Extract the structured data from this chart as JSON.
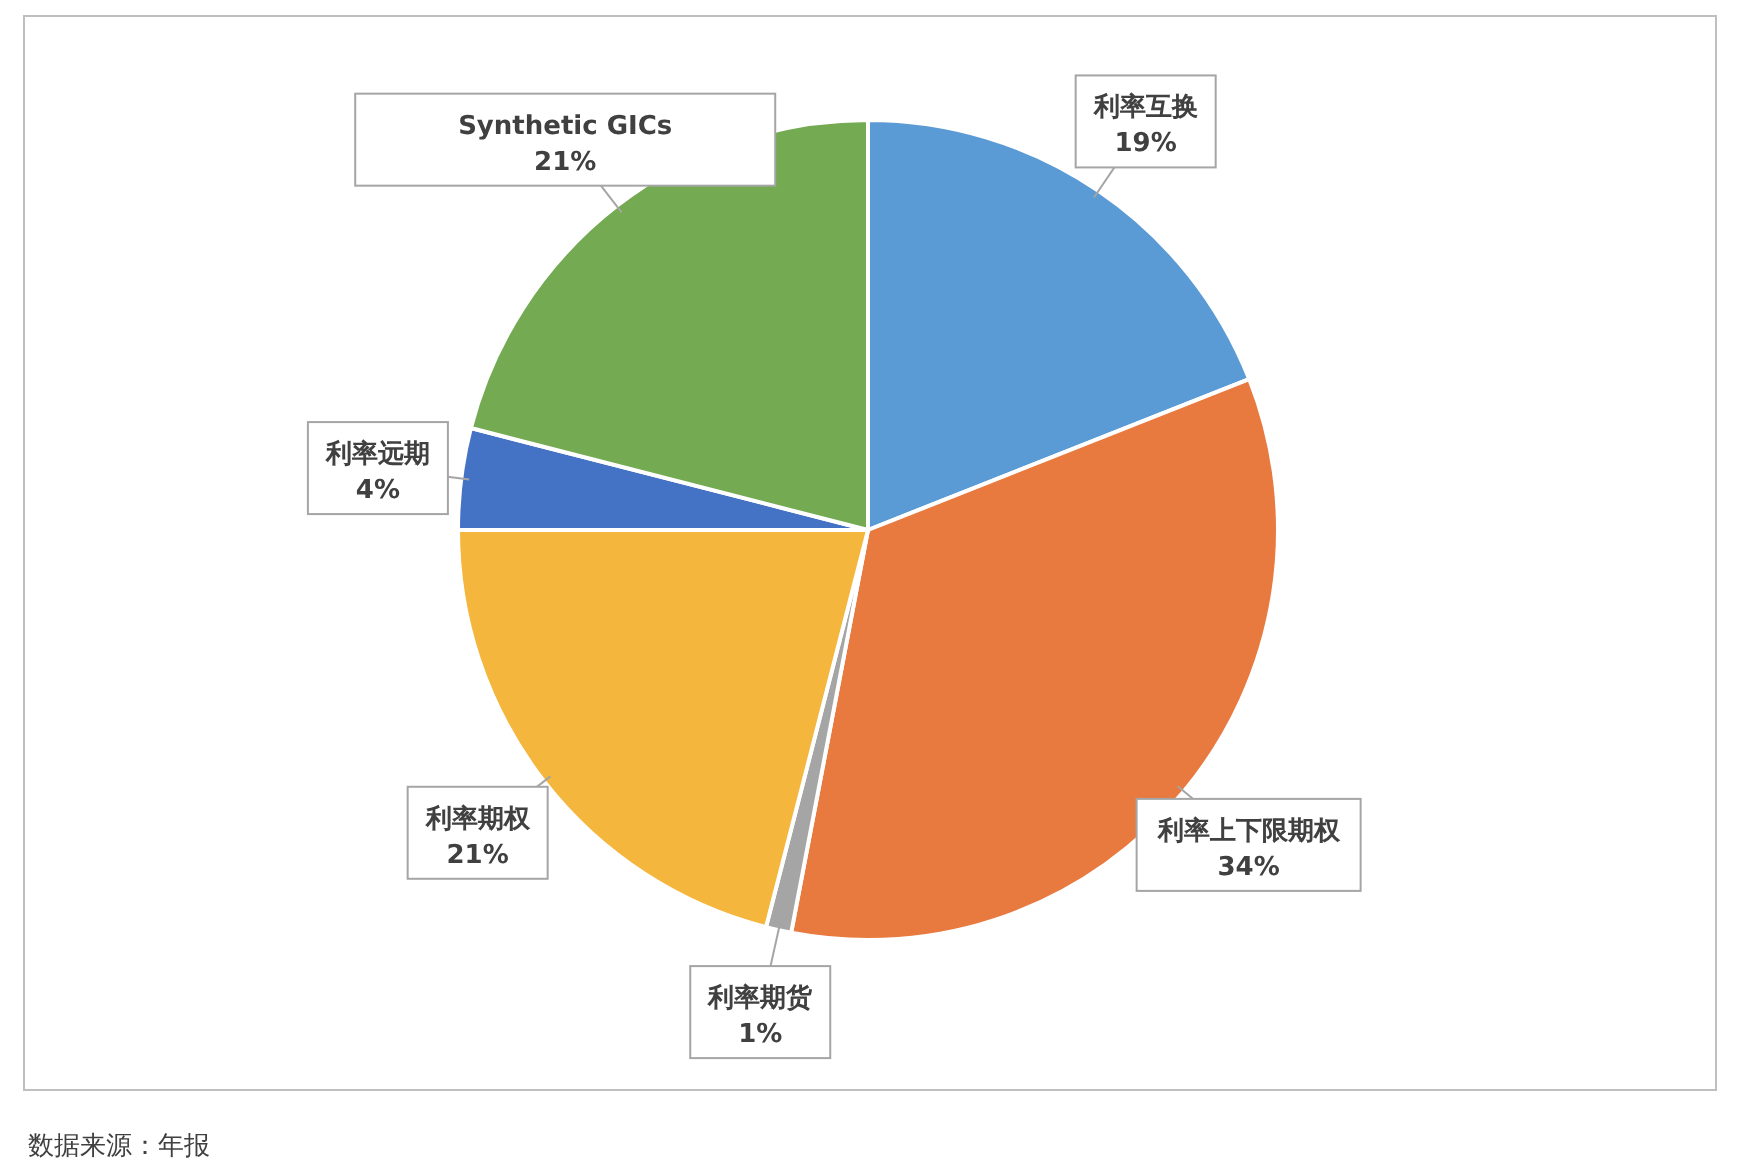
{
  "chart_data": {
    "type": "pie",
    "categories": [
      "利率互换",
      "利率上下限期权",
      "利率期货",
      "利率期权",
      "利率远期",
      "Synthetic GICs"
    ],
    "values": [
      19,
      34,
      1,
      21,
      4,
      21
    ],
    "colors": [
      "#5b9bd5",
      "#e8793f",
      "#a5a5a5",
      "#f4b63c",
      "#4472c4",
      "#73aa52"
    ],
    "value_labels": [
      "19%",
      "34%",
      "1%",
      "21%",
      "4%",
      "21%"
    ],
    "annotations": [
      "数据来源：年报"
    ]
  }
}
